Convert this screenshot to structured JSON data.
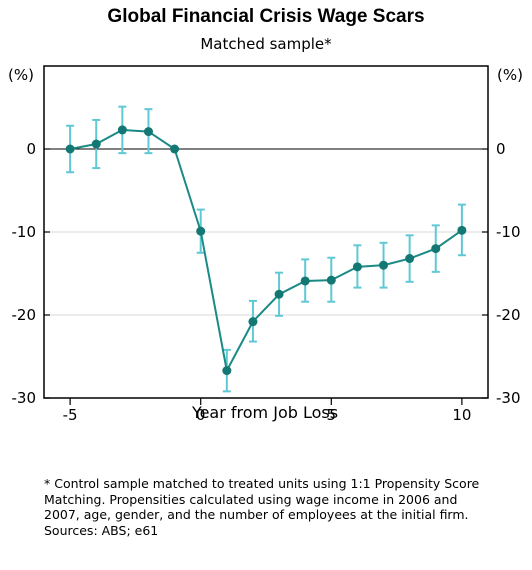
{
  "chart_data": {
    "type": "line",
    "title": "Global Financial Crisis Wage Scars",
    "subtitle": "Matched sample*",
    "xlabel": "Year from Job Loss",
    "ylabel_left": "(%)",
    "ylabel_right": "(%)",
    "xlim": [
      -6,
      11
    ],
    "ylim": [
      -30,
      10
    ],
    "x_ticks": [
      -5,
      0,
      5,
      10
    ],
    "y_ticks": [
      0,
      -10,
      -20,
      -30
    ],
    "grid": true,
    "x": [
      -5,
      -4,
      -3,
      -2,
      -1,
      0,
      1,
      2,
      3,
      4,
      5,
      6,
      7,
      8,
      9,
      10
    ],
    "series": [
      {
        "values": [
          0.0,
          0.6,
          2.3,
          2.1,
          0.0,
          -9.9,
          -26.7,
          -20.8,
          -17.5,
          -15.9,
          -15.8,
          -14.2,
          -14.0,
          -13.2,
          -12.0,
          -9.8
        ],
        "lower": [
          -2.8,
          -2.3,
          -0.5,
          -0.5,
          0.0,
          -12.5,
          -29.2,
          -23.2,
          -20.1,
          -18.4,
          -18.4,
          -16.7,
          -16.7,
          -16.0,
          -14.8,
          -12.8
        ],
        "upper": [
          2.8,
          3.5,
          5.1,
          4.8,
          0.0,
          -7.3,
          -24.2,
          -18.3,
          -14.9,
          -13.3,
          -13.1,
          -11.6,
          -11.3,
          -10.4,
          -9.2,
          -6.7
        ]
      }
    ],
    "colors": {
      "line": "#1a8a85",
      "marker": "#137874",
      "error_bar": "#5fc8d4",
      "grid": "#d9d9d9"
    }
  },
  "notes": {
    "footnote": "* Control sample matched to treated units using 1:1 Propensity Score Matching. Propensities calculated using wage income in 2006 and 2007, age, gender, and the number of employees at the initial firm.",
    "sources": "Sources: ABS; e61"
  }
}
